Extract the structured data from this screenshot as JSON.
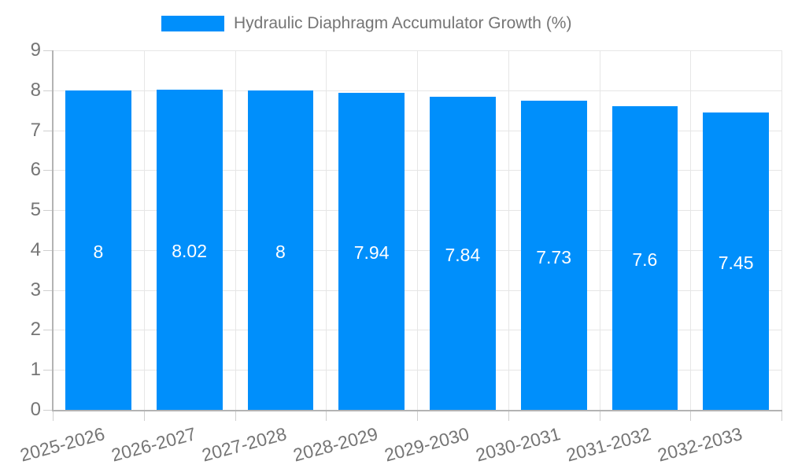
{
  "legend": {
    "position": "top",
    "items": [
      {
        "label": "Hydraulic Diaphragm Accumulator Growth (%)",
        "color": "#008FFB"
      }
    ]
  },
  "chart_data": {
    "type": "bar",
    "title": "Hydraulic Diaphragm Accumulator Growth (%)",
    "xlabel": "",
    "ylabel": "",
    "categories": [
      "2025-2026",
      "2026-2027",
      "2027-2028",
      "2028-2029",
      "2029-2030",
      "2030-2031",
      "2031-2032",
      "2032-2033"
    ],
    "values": [
      8,
      8.02,
      8,
      7.94,
      7.84,
      7.73,
      7.6,
      7.45
    ],
    "value_labels": [
      "8",
      "8.02",
      "8",
      "7.94",
      "7.84",
      "7.73",
      "7.6",
      "7.45"
    ],
    "ylim": [
      0,
      9
    ],
    "yticks": [
      0,
      1,
      2,
      3,
      4,
      5,
      6,
      7,
      8,
      9
    ],
    "grid": "on",
    "legend_position": "top",
    "x_label_rotation_deg": -15,
    "colors": {
      "bar": "#008FFB",
      "bar_label": "#ffffff",
      "axis_text": "#757575",
      "gridline": "#e6e6e6",
      "axis_line": "#b3b3b3",
      "tick_mark": "#cfcfcf",
      "background": "#ffffff"
    }
  }
}
